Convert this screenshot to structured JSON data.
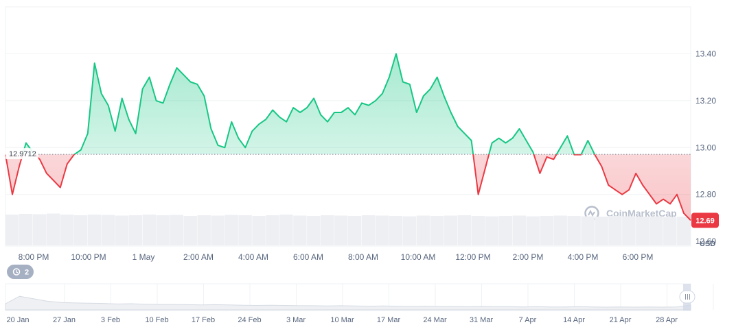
{
  "chart_data": {
    "type": "line",
    "unit": "USD",
    "ylim": [
      12.58,
      13.6
    ],
    "y_ticks": [
      13.4,
      13.2,
      13.0,
      12.8,
      12.6
    ],
    "y_tick_labels": [
      "13.40",
      "13.20",
      "13.00",
      "12.80",
      "12.60"
    ],
    "x_tick_labels": [
      "8:00 PM",
      "10:00 PM",
      "1 May",
      "2:00 AM",
      "4:00 AM",
      "6:00 AM",
      "8:00 AM",
      "10:00 AM",
      "12:00 PM",
      "2:00 PM",
      "4:00 PM",
      "6:00 PM"
    ],
    "reference_value": 12.9712,
    "reference_label": "12.9712",
    "current_value": 12.69,
    "current_label": "12.69",
    "colors": {
      "above": "#16c784",
      "below": "#ea3943",
      "badge": "#ea3943"
    },
    "series": [
      {
        "x": [
          0,
          0.5,
          1,
          1.5,
          2,
          2.5,
          3,
          3.5,
          4,
          4.5,
          5,
          5.5,
          6,
          6.5,
          7,
          7.5,
          8,
          8.5,
          9,
          9.5,
          10,
          10.5,
          11,
          11.5,
          12,
          12.5,
          13,
          13.5,
          14,
          14.5,
          15,
          15.5,
          16,
          16.5,
          17,
          17.5,
          18,
          18.5,
          19,
          19.5,
          20,
          20.5,
          21,
          21.5,
          22,
          22.5,
          23,
          23.5,
          24,
          24.5,
          25
        ],
        "values": [
          12.97,
          12.8,
          12.92,
          13.02,
          12.98,
          12.95,
          12.89,
          12.86,
          12.83,
          12.93,
          12.97,
          12.99,
          13.06,
          13.36,
          13.23,
          13.18,
          13.07,
          13.21,
          13.12,
          13.06,
          13.25,
          13.3,
          13.2,
          13.19,
          13.27,
          13.34,
          13.31,
          13.28,
          13.27,
          13.22,
          13.08,
          13.01,
          13.0,
          13.11,
          13.04,
          13.0,
          13.07,
          13.1,
          13.12,
          13.16,
          13.13,
          13.11,
          13.17,
          13.15,
          13.17,
          13.21,
          13.14,
          13.11,
          13.15,
          13.15,
          13.17
        ],
        "x_tail": [
          25.5,
          26,
          26.5,
          27,
          27.5,
          28,
          28.5,
          29,
          29.5,
          30,
          30.5,
          31,
          31.5,
          32,
          32.5,
          33,
          33.5,
          34,
          34.5,
          35,
          35.5,
          36,
          36.5,
          37,
          37.5,
          38,
          38.5,
          39,
          39.5,
          40,
          40.5,
          41,
          41.5,
          42,
          42.5,
          43,
          43.5,
          44,
          44.5,
          45,
          45.5,
          46,
          46.5,
          47,
          47.5,
          48,
          48.5,
          49,
          49.5,
          50
        ],
        "values_tail": [
          13.14,
          13.19,
          13.18,
          13.2,
          13.23,
          13.3,
          13.4,
          13.28,
          13.27,
          13.15,
          13.22,
          13.25,
          13.3,
          13.22,
          13.15,
          13.09,
          13.06,
          13.03,
          12.8,
          12.91,
          13.02,
          13.04,
          13.02,
          13.04,
          13.08,
          13.03,
          12.98,
          12.89,
          12.96,
          12.95,
          13.0,
          13.05,
          12.97,
          12.97,
          13.03,
          12.97,
          12.92,
          12.84,
          12.82,
          12.8,
          12.82,
          12.89,
          12.84,
          12.8,
          12.76,
          12.78,
          12.76,
          12.8,
          12.72,
          12.69
        ]
      }
    ]
  },
  "volume": {
    "values": [
      0.9,
      0.92,
      0.91,
      0.93,
      0.9,
      0.88,
      0.9,
      0.89,
      0.87,
      0.88,
      0.9,
      0.88,
      0.89,
      0.86,
      0.88,
      0.87,
      0.89,
      0.88,
      0.86,
      0.88,
      0.9,
      0.87,
      0.86,
      0.88,
      0.87,
      0.86,
      0.88,
      0.87,
      0.86,
      0.85,
      0.87,
      0.86,
      0.87,
      0.88,
      0.86,
      0.85,
      0.86,
      0.87,
      0.85,
      0.86,
      0.87,
      0.86,
      0.85,
      0.84,
      0.86,
      0.85,
      0.84,
      0.85,
      0.83,
      0.84
    ]
  },
  "watermark": "CoinMarketCap",
  "navigator": {
    "badge_count": "2",
    "labels": [
      "20 Jan",
      "27 Jan",
      "3 Feb",
      "10 Feb",
      "17 Feb",
      "24 Feb",
      "3 Mar",
      "10 Mar",
      "17 Mar",
      "24 Mar",
      "31 Mar",
      "7 Apr",
      "14 Apr",
      "21 Apr",
      "28 Apr"
    ],
    "history": [
      0.25,
      0.55,
      0.45,
      0.35,
      0.3,
      0.28,
      0.27,
      0.26,
      0.24,
      0.25,
      0.23,
      0.22,
      0.22,
      0.21,
      0.2,
      0.21,
      0.2,
      0.19,
      0.18,
      0.19,
      0.18,
      0.17,
      0.17,
      0.16,
      0.17,
      0.16,
      0.15,
      0.16,
      0.15,
      0.14,
      0.15,
      0.14,
      0.14,
      0.13,
      0.14,
      0.13,
      0.13,
      0.12,
      0.13,
      0.12,
      0.12,
      0.13,
      0.12,
      0.11,
      0.12,
      0.11,
      0.12,
      0.11,
      0.12,
      0.2
    ]
  }
}
